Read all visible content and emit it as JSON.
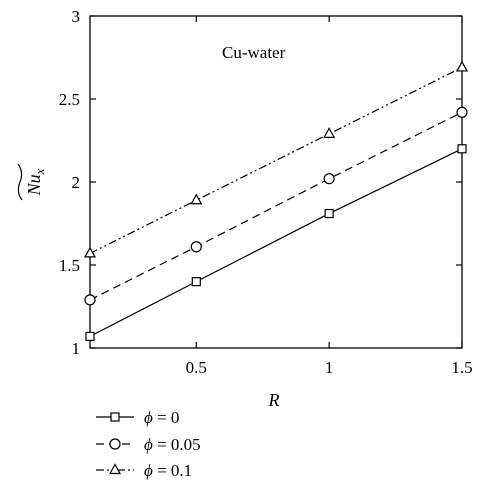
{
  "chart_data": {
    "type": "line",
    "title": "",
    "annotation": "Cu-water",
    "xlabel": "R",
    "ylabel_main": "Nu",
    "ylabel_sub": "x",
    "xlim": [
      0.1,
      1.5
    ],
    "ylim": [
      1,
      3
    ],
    "xticks": [
      0.5,
      1,
      1.5
    ],
    "xtick_labels": [
      "0.5",
      "1",
      "1.5"
    ],
    "yticks": [
      1,
      1.5,
      2,
      2.5,
      3
    ],
    "ytick_labels": [
      "1",
      "1.5",
      "2",
      "2.5",
      "3"
    ],
    "grid": false,
    "legend_position": "below",
    "series": [
      {
        "name": "ϕ = 0",
        "legend_symbol": "ϕ",
        "legend_value": "= 0",
        "marker": "square",
        "dash": "solid",
        "x": [
          0.1,
          0.5,
          1.0,
          1.5
        ],
        "y": [
          1.07,
          1.4,
          1.81,
          2.2
        ]
      },
      {
        "name": "ϕ = 0.05",
        "legend_symbol": "ϕ",
        "legend_value": "= 0.05",
        "marker": "circle",
        "dash": "dashed",
        "x": [
          0.1,
          0.5,
          1.0,
          1.5
        ],
        "y": [
          1.29,
          1.61,
          2.02,
          2.42
        ]
      },
      {
        "name": "ϕ = 0.1",
        "legend_symbol": "ϕ",
        "legend_value": "= 0.1",
        "marker": "triangle",
        "dash": "dashdotdot",
        "x": [
          0.1,
          0.5,
          1.0,
          1.5
        ],
        "y": [
          1.57,
          1.89,
          2.29,
          2.69
        ]
      }
    ]
  }
}
